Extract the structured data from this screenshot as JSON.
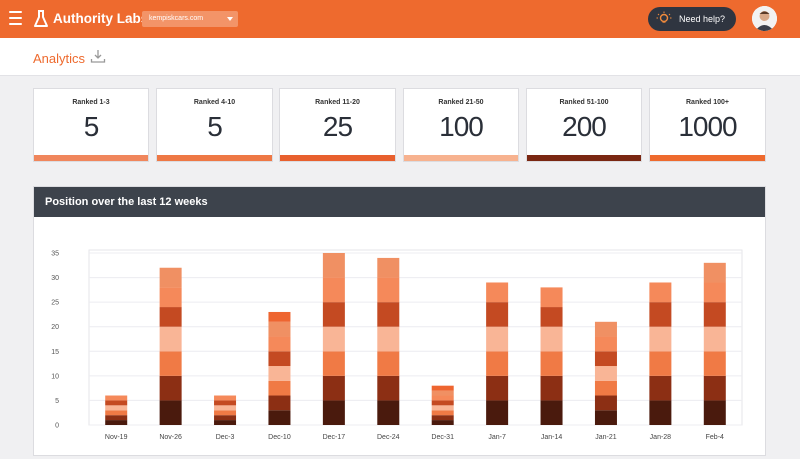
{
  "app": {
    "brand": "Authority Labs",
    "site": "kempiskcars.com",
    "help_label": "Need help?"
  },
  "page": {
    "title": "Analytics"
  },
  "stats": [
    {
      "label": "Ranked 1-3",
      "value": "5",
      "color": "#f0865c"
    },
    {
      "label": "Ranked 4-10",
      "value": "5",
      "color": "#ee7845"
    },
    {
      "label": "Ranked 11-20",
      "value": "25",
      "color": "#e8602e"
    },
    {
      "label": "Ranked 21-50",
      "value": "100",
      "color": "#f7b28f"
    },
    {
      "label": "Ranked 51-100",
      "value": "200",
      "color": "#7a2712"
    },
    {
      "label": "Ranked 100+",
      "value": "1000",
      "color": "#ee6a2e"
    }
  ],
  "chart_panel": {
    "title": "Position over the last 12 weeks"
  },
  "chart_data": {
    "type": "bar",
    "stacked": true,
    "categories": [
      "Nov-19",
      "Nov-26",
      "Dec-3",
      "Dec-10",
      "Dec-17",
      "Dec-24",
      "Dec-31",
      "Jan-7",
      "Jan-14",
      "Jan-21",
      "Jan-28",
      "Feb-4"
    ],
    "yticks": [
      0,
      5,
      10,
      15,
      20,
      25,
      30,
      35
    ],
    "ylim": [
      0,
      35
    ],
    "segment_colors": [
      "#4a1a0d",
      "#8c2f14",
      "#f07a45",
      "#f9b596",
      "#c44a22",
      "#f5895a",
      "#f09063",
      "#ee6530"
    ],
    "series": [
      {
        "values": [
          1,
          5,
          1,
          3,
          5,
          5,
          1,
          5,
          5,
          3,
          5,
          5
        ]
      },
      {
        "values": [
          1,
          5,
          1,
          3,
          5,
          5,
          1,
          5,
          5,
          3,
          5,
          5
        ]
      },
      {
        "values": [
          1,
          5,
          1,
          3,
          5,
          5,
          1,
          5,
          5,
          3,
          5,
          5
        ]
      },
      {
        "values": [
          1,
          5,
          1,
          3,
          5,
          5,
          1,
          5,
          5,
          3,
          5,
          5
        ]
      },
      {
        "values": [
          1,
          4,
          1,
          3,
          5,
          5,
          1,
          5,
          4,
          3,
          5,
          5
        ]
      },
      {
        "values": [
          1,
          4,
          1,
          3,
          5,
          5,
          1,
          4,
          4,
          3,
          4,
          4
        ]
      },
      {
        "values": [
          0,
          4,
          0,
          3,
          5,
          4,
          1,
          0,
          0,
          3,
          0,
          4
        ]
      },
      {
        "values": [
          0,
          0,
          0,
          2,
          0,
          0,
          1,
          0,
          0,
          0,
          0,
          0
        ]
      }
    ],
    "grid": true
  }
}
